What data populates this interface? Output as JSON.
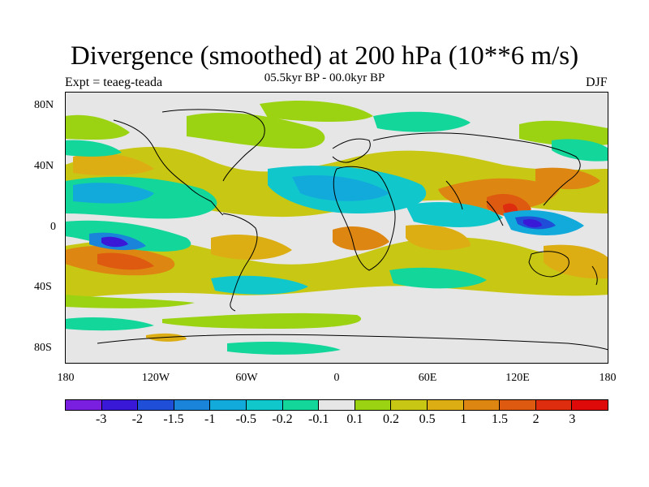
{
  "title": "Divergence (smoothed) at 200 hPa (10**6 m/s)",
  "subtitle_left": "Expt = teaeg-teada",
  "subtitle_center": "05.5kyr BP - 00.0kyr BP",
  "subtitle_right": "DJF",
  "lat_labels": [
    "80N",
    "40N",
    "0",
    "40S",
    "80S"
  ],
  "lon_labels": [
    "180",
    "120W",
    "60W",
    "0",
    "60E",
    "120E",
    "180"
  ],
  "colorbar": {
    "colors": [
      "#7a1ee0",
      "#3a18d8",
      "#1f4fd9",
      "#1a84da",
      "#12aadb",
      "#10c8cc",
      "#12d69a",
      "#e6e6e6",
      "#9bd312",
      "#c8c814",
      "#dcae14",
      "#dd8612",
      "#de5a10",
      "#dd2c0e",
      "#de0a0a"
    ],
    "labels": [
      "-3",
      "-2",
      "-1.5",
      "-1",
      "-0.5",
      "-0.2",
      "-0.1",
      "0.1",
      "0.2",
      "0.5",
      "1",
      "1.5",
      "2",
      "3"
    ]
  }
}
